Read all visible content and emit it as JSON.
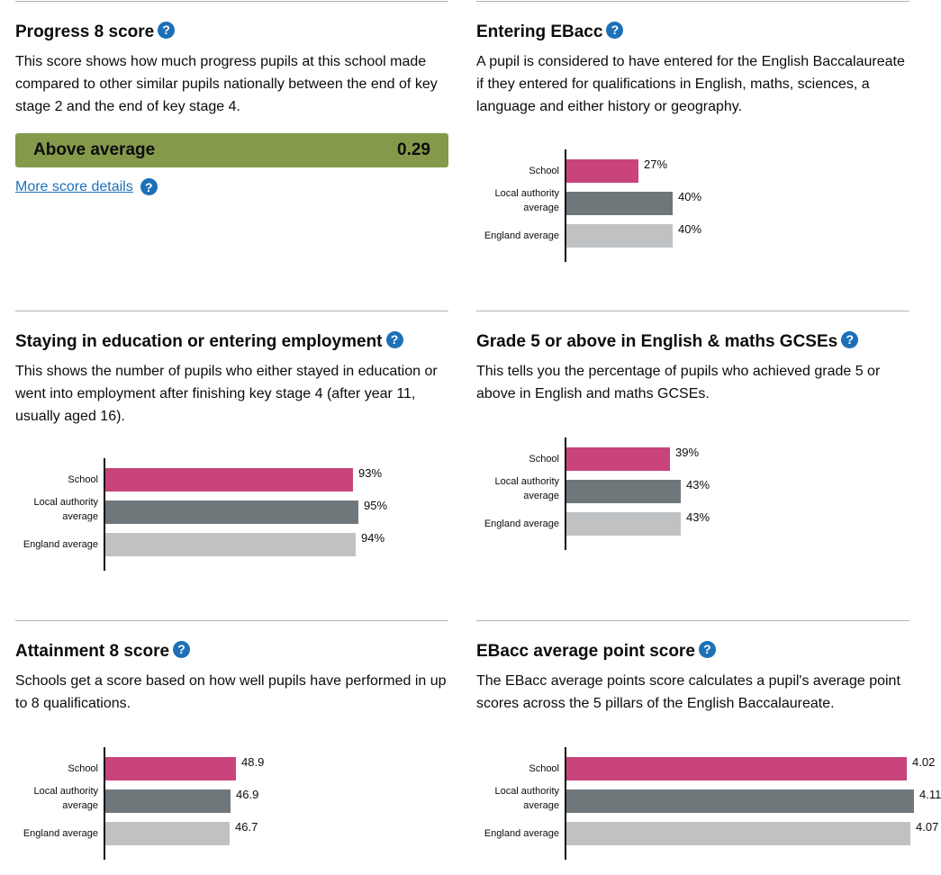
{
  "panels": {
    "p8": {
      "title": "Progress 8 score",
      "desc": "This score shows how much progress pupils at this school made compared to other similar pupils nationally between the end of key stage 2 and the end of key stage 4.",
      "band": "Above average",
      "score": "0.29",
      "band_color": "#85994b",
      "link": "More score details"
    },
    "ebacc": {
      "title": "Entering EBacc",
      "desc": "A pupil is considered to have entered for the English Baccalaureate if they entered for qualifications in English, maths, sciences, a language and either history or geography."
    },
    "staying": {
      "title": "Staying in education or entering employment",
      "desc": "This shows the number of pupils who either stayed in education or went into employment after finishing key stage 4 (after year 11, usually aged 16)."
    },
    "grade5": {
      "title": "Grade 5 or above in English & maths GCSEs",
      "desc": "This tells you the percentage of pupils who achieved grade 5 or above in English and maths GCSEs."
    },
    "att8": {
      "title": "Attainment 8 score",
      "desc": "Schools get a score based on how well pupils have performed in up to 8 qualifications."
    },
    "ebaccaps": {
      "title": "EBacc average point score",
      "desc": "The EBacc average points score calculates a pupil's average point scores across the 5 pillars of the English Baccalaureate."
    }
  },
  "colors": {
    "school": "#c8447b",
    "local": "#6f777b",
    "england": "#bfc1c3",
    "help_icon": "#1d70b8"
  },
  "icons": {
    "help": "question-mark-circle-icon"
  },
  "help_glyph": "?",
  "chart_data": [
    {
      "id": "ebacc",
      "type": "bar",
      "categories": [
        "School",
        "Local authority average",
        "England average"
      ],
      "values": [
        27,
        40,
        40
      ],
      "value_labels": [
        "27%",
        "40%",
        "40%"
      ],
      "xlim": [
        0,
        100
      ]
    },
    {
      "id": "staying",
      "type": "bar",
      "categories": [
        "School",
        "Local authority average",
        "England average"
      ],
      "values": [
        93,
        95,
        94
      ],
      "value_labels": [
        "93%",
        "95%",
        "94%"
      ],
      "xlim": [
        0,
        100
      ]
    },
    {
      "id": "grade5",
      "type": "bar",
      "categories": [
        "School",
        "Local authority average",
        "England average"
      ],
      "values": [
        39,
        43,
        43
      ],
      "value_labels": [
        "39%",
        "43%",
        "43%"
      ],
      "xlim": [
        0,
        100
      ]
    },
    {
      "id": "att8",
      "type": "bar",
      "categories": [
        "School",
        "Local authority average",
        "England average"
      ],
      "values": [
        48.9,
        46.9,
        46.7
      ],
      "value_labels": [
        "48.9",
        "46.9",
        "46.7"
      ],
      "xlim": [
        0,
        100
      ]
    },
    {
      "id": "ebaccaps",
      "type": "bar",
      "categories": [
        "School",
        "Local authority average",
        "England average"
      ],
      "values": [
        4.02,
        4.11,
        4.07
      ],
      "value_labels": [
        "4.02",
        "4.11",
        "4.07"
      ],
      "xlim": [
        0,
        3.15
      ]
    }
  ]
}
